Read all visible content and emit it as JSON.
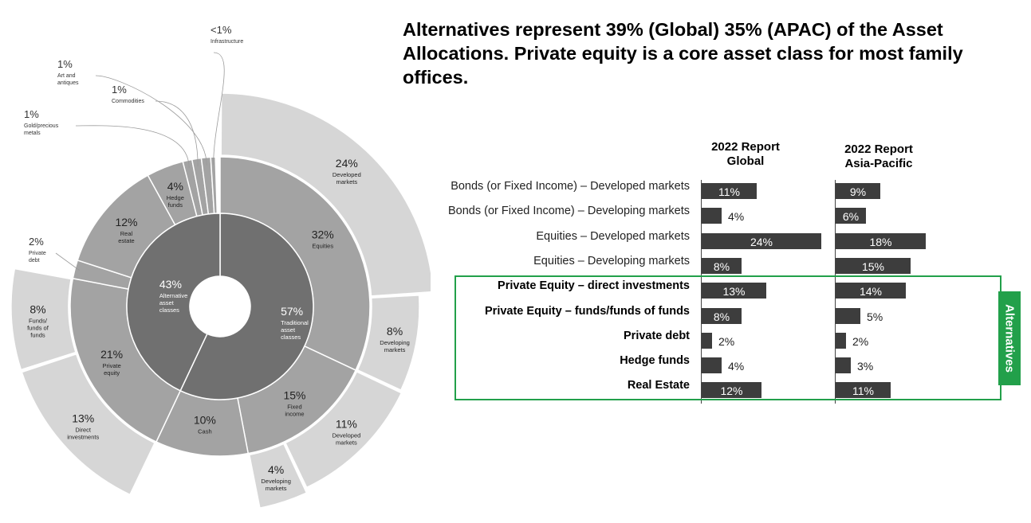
{
  "headline": "Alternatives represent 39% (Global) 35% (APAC) of the Asset Allocations. Private equity is a core asset class for most family offices.",
  "columns": {
    "global": [
      "2022 Report",
      "Global"
    ],
    "apac": [
      "2022 Report",
      "Asia-Pacific"
    ]
  },
  "alternatives_label": "Alternatives",
  "colors": {
    "inner_ring": "#707070",
    "middle_ring": "#a3a3a3",
    "outer_ring": "#d6d6d6",
    "bar": "#3d3d3d",
    "alternatives_highlight": "#22a04a"
  },
  "chart_data": [
    {
      "type": "sunburst",
      "inner": [
        {
          "value": 57,
          "label": "57%",
          "name": "Traditional asset classes"
        },
        {
          "value": 43,
          "label": "43%",
          "name": "Alternative asset classes"
        }
      ],
      "middle": [
        {
          "value": 32,
          "label": "32%",
          "name": "Equities",
          "parent": "Traditional asset classes"
        },
        {
          "value": 15,
          "label": "15%",
          "name": "Fixed income",
          "parent": "Traditional asset classes"
        },
        {
          "value": 10,
          "label": "10%",
          "name": "Cash",
          "parent": "Traditional asset classes"
        },
        {
          "value": 21,
          "label": "21%",
          "name": "Private equity",
          "parent": "Alternative asset classes"
        },
        {
          "value": 2,
          "label": "2%",
          "name": "Private debt",
          "parent": "Alternative asset classes"
        },
        {
          "value": 12,
          "label": "12%",
          "name": "Real estate",
          "parent": "Alternative asset classes"
        },
        {
          "value": 4,
          "label": "4%",
          "name": "Hedge funds",
          "parent": "Alternative asset classes"
        },
        {
          "value": 1,
          "label": "1%",
          "name": "Gold/precious metals",
          "parent": "Alternative asset classes"
        },
        {
          "value": 1,
          "label": "1%",
          "name": "Commodities",
          "parent": "Alternative asset classes"
        },
        {
          "value": 1,
          "label": "1%",
          "name": "Art and antiques",
          "parent": "Alternative asset classes"
        },
        {
          "value": 0.5,
          "label": "<1%",
          "name": "Infrastructure",
          "parent": "Alternative asset classes"
        }
      ],
      "outer": [
        {
          "value": 24,
          "label": "24%",
          "name": "Developed markets",
          "parent": "Equities"
        },
        {
          "value": 8,
          "label": "8%",
          "name": "Developing markets",
          "parent": "Equities"
        },
        {
          "value": 11,
          "label": "11%",
          "name": "Developed markets",
          "parent": "Fixed income"
        },
        {
          "value": 4,
          "label": "4%",
          "name": "Developing markets",
          "parent": "Fixed income"
        },
        {
          "value": 13,
          "label": "13%",
          "name": "Direct investments",
          "parent": "Private equity"
        },
        {
          "value": 8,
          "label": "8%",
          "name": "Funds/ funds of funds",
          "parent": "Private equity"
        }
      ]
    },
    {
      "type": "bar",
      "orientation": "horizontal",
      "categories": [
        "Bonds (or Fixed Income) – Developed markets",
        "Bonds (or Fixed Income) – Developing markets",
        "Equities – Developed markets",
        "Equities – Developing markets",
        "Private Equity – direct investments",
        "Private Equity – funds/funds of funds",
        "Private debt",
        "Hedge funds",
        "Real Estate"
      ],
      "bold_categories": [
        "Private Equity – direct investments",
        "Private Equity – funds/funds of funds",
        "Private debt",
        "Hedge funds",
        "Real Estate"
      ],
      "series": [
        {
          "name": "2022 Report Global",
          "values": [
            11,
            4,
            24,
            8,
            13,
            8,
            2,
            4,
            12
          ]
        },
        {
          "name": "2022 Report Asia-Pacific",
          "values": [
            9,
            6,
            18,
            15,
            14,
            5,
            2,
            3,
            11
          ]
        }
      ],
      "unit": "%"
    }
  ]
}
